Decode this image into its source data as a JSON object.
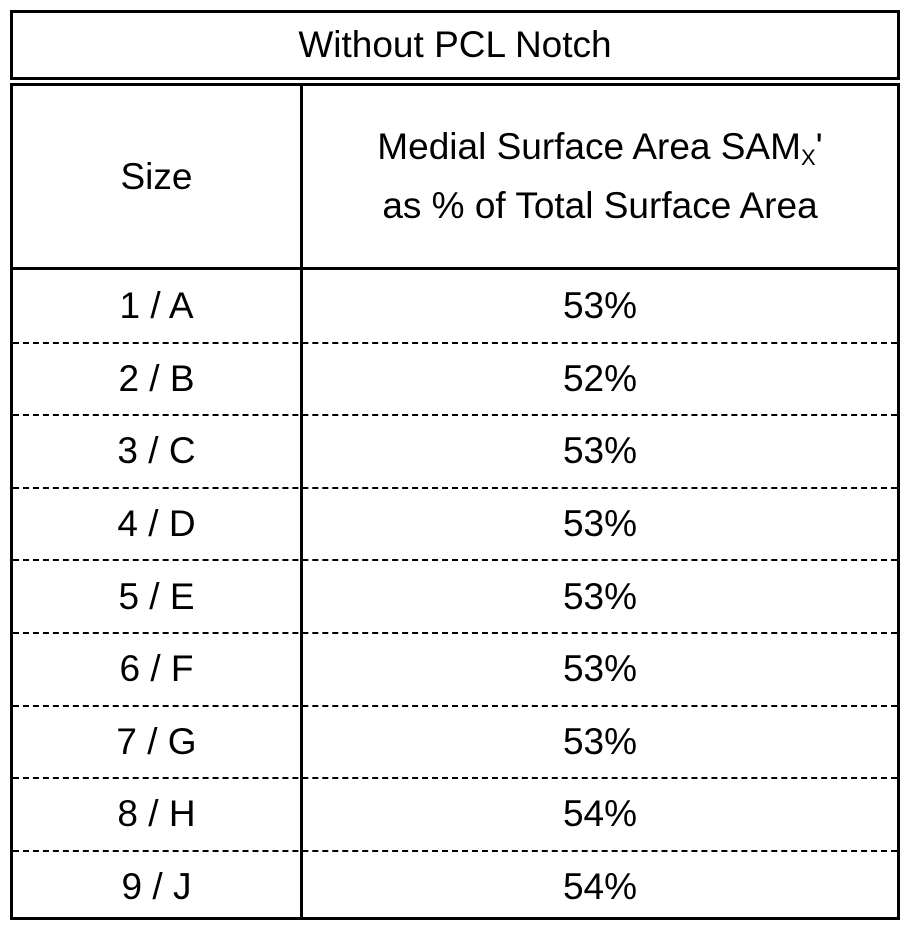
{
  "table": {
    "title": "Without PCL Notch",
    "headers": {
      "size": "Size",
      "pct_line1_prefix": "Medial Surface Area SAM",
      "pct_line1_subscript": "X",
      "pct_line1_suffix": "'",
      "pct_line2": "as % of Total Surface Area"
    },
    "rows": [
      {
        "size": "1 / A",
        "pct": "53%"
      },
      {
        "size": "2 / B",
        "pct": "52%"
      },
      {
        "size": "3 / C",
        "pct": "53%"
      },
      {
        "size": "4 / D",
        "pct": "53%"
      },
      {
        "size": "5 / E",
        "pct": "53%"
      },
      {
        "size": "6 / F",
        "pct": "53%"
      },
      {
        "size": "7 / G",
        "pct": "53%"
      },
      {
        "size": "8 / H",
        "pct": "54%"
      },
      {
        "size": "9 / J",
        "pct": "54%"
      }
    ]
  }
}
